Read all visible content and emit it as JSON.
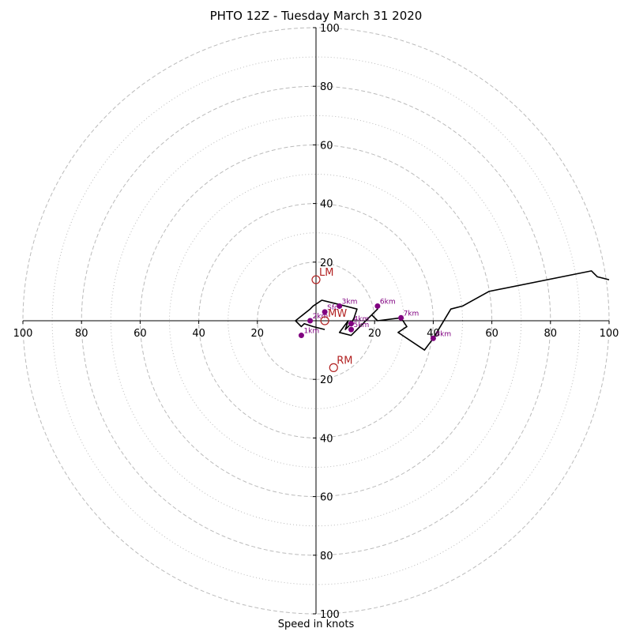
{
  "chart_data": {
    "type": "hodograph",
    "title": "PHTO 12Z - Tuesday March 31 2020",
    "xlabel": "Speed in knots",
    "range": 100,
    "rings_dashed": [
      20,
      40,
      60,
      80,
      100
    ],
    "rings_dotted": [
      30,
      50,
      70,
      90
    ],
    "ticks": {
      "left": [
        "100",
        "80",
        "60",
        "40",
        "20"
      ],
      "right": [
        "20",
        "40",
        "60",
        "80",
        "100"
      ],
      "up": [
        "20",
        "40",
        "60",
        "80",
        "100"
      ],
      "down": [
        "20",
        "40",
        "60",
        "80",
        "100"
      ]
    },
    "trace": [
      [
        3,
        -3
      ],
      [
        -1,
        -2
      ],
      [
        -4,
        -1
      ],
      [
        -5,
        -2
      ],
      [
        -7,
        0
      ],
      [
        -2,
        4
      ],
      [
        -1,
        5
      ],
      [
        2,
        7
      ],
      [
        6,
        6
      ],
      [
        10,
        5
      ],
      [
        14,
        4
      ],
      [
        13,
        1
      ],
      [
        12,
        -1
      ],
      [
        10,
        -3
      ],
      [
        11,
        0
      ],
      [
        8,
        -4
      ],
      [
        12,
        -5
      ],
      [
        21,
        4
      ],
      [
        19,
        2
      ],
      [
        21,
        0
      ],
      [
        29,
        1
      ],
      [
        31,
        -2
      ],
      [
        28,
        -4
      ],
      [
        37,
        -10
      ],
      [
        40,
        -6
      ],
      [
        46,
        4
      ],
      [
        50,
        5
      ],
      [
        59,
        10
      ],
      [
        94,
        17
      ],
      [
        96,
        15
      ],
      [
        100,
        14
      ]
    ],
    "points": [
      {
        "label": "Sfc",
        "u": 3,
        "v": 3
      },
      {
        "label": "1km",
        "u": -5,
        "v": -5
      },
      {
        "label": "2km",
        "u": -2,
        "v": 0
      },
      {
        "label": "3km",
        "u": 8,
        "v": 5
      },
      {
        "label": "4km",
        "u": 12,
        "v": -1
      },
      {
        "label": "5km",
        "u": 12,
        "v": -3
      },
      {
        "label": "6km",
        "u": 21,
        "v": 5
      },
      {
        "label": "7km",
        "u": 29,
        "v": 1
      },
      {
        "label": "8km",
        "u": 40,
        "v": -6
      }
    ],
    "motions": [
      {
        "label": "LM",
        "u": 0,
        "v": 14
      },
      {
        "label": "MW",
        "u": 3,
        "v": 0
      },
      {
        "label": "RM",
        "u": 6,
        "v": -16
      }
    ],
    "colors": {
      "trace": "#000000",
      "levels": "#800080",
      "motions": "#b22222",
      "rings": "#bbbbbb"
    }
  }
}
